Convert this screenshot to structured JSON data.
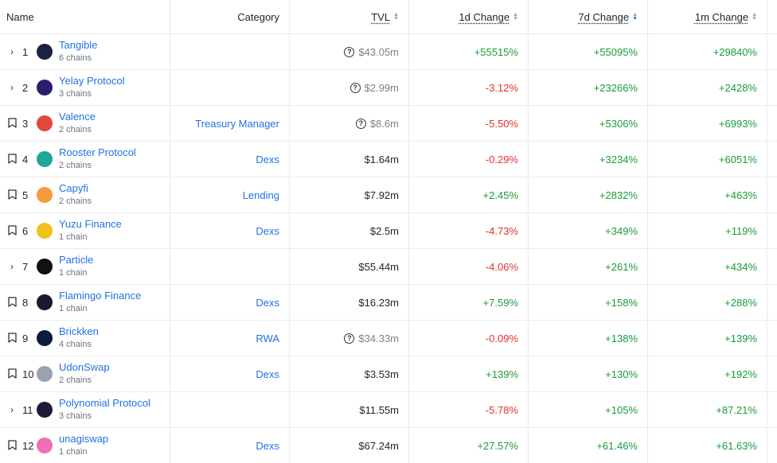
{
  "header": {
    "name": "Name",
    "category": "Category",
    "tvl": "TVL",
    "d1": "1d Change",
    "d7": "7d Change",
    "m1": "1m Change"
  },
  "rows": [
    {
      "control": "chevron",
      "rank": "1",
      "name": "Tangible",
      "chains": "6 chains",
      "category": "",
      "tvl": "$43.05m",
      "tvl_uncertain": true,
      "d1": "+55515%",
      "d7": "+55095%",
      "m1": "+29840%",
      "logo_color": "#1b2240"
    },
    {
      "control": "chevron",
      "rank": "2",
      "name": "Yelay Protocol",
      "chains": "3 chains",
      "category": "",
      "tvl": "$2.99m",
      "tvl_uncertain": true,
      "d1": "-3.12%",
      "d7": "+23266%",
      "m1": "+2428%",
      "logo_color": "#2a1f6e"
    },
    {
      "control": "bookmark",
      "rank": "3",
      "name": "Valence",
      "chains": "2 chains",
      "category": "Treasury Manager",
      "tvl": "$8.6m",
      "tvl_uncertain": true,
      "d1": "-5.50%",
      "d7": "+5306%",
      "m1": "+6993%",
      "logo_color": "#e2483d"
    },
    {
      "control": "bookmark",
      "rank": "4",
      "name": "Rooster Protocol",
      "chains": "2 chains",
      "category": "Dexs",
      "tvl": "$1.64m",
      "tvl_uncertain": false,
      "d1": "-0.29%",
      "d7": "+3234%",
      "m1": "+6051%",
      "logo_color": "#1fa79a"
    },
    {
      "control": "bookmark",
      "rank": "5",
      "name": "Capyfi",
      "chains": "2 chains",
      "category": "Lending",
      "tvl": "$7.92m",
      "tvl_uncertain": false,
      "d1": "+2.45%",
      "d7": "+2832%",
      "m1": "+463%",
      "logo_color": "#f59b3b"
    },
    {
      "control": "bookmark",
      "rank": "6",
      "name": "Yuzu Finance",
      "chains": "1 chain",
      "category": "Dexs",
      "tvl": "$2.5m",
      "tvl_uncertain": false,
      "d1": "-4.73%",
      "d7": "+349%",
      "m1": "+119%",
      "logo_color": "#f2c21a"
    },
    {
      "control": "chevron",
      "rank": "7",
      "name": "Particle",
      "chains": "1 chain",
      "category": "",
      "tvl": "$55.44m",
      "tvl_uncertain": false,
      "d1": "-4.06%",
      "d7": "+261%",
      "m1": "+434%",
      "logo_color": "#111111"
    },
    {
      "control": "bookmark",
      "rank": "8",
      "name": "Flamingo Finance",
      "chains": "1 chain",
      "category": "Dexs",
      "tvl": "$16.23m",
      "tvl_uncertain": false,
      "d1": "+7.59%",
      "d7": "+158%",
      "m1": "+288%",
      "logo_color": "#1a1a2e"
    },
    {
      "control": "bookmark",
      "rank": "9",
      "name": "Brickken",
      "chains": "4 chains",
      "category": "RWA",
      "tvl": "$34.33m",
      "tvl_uncertain": true,
      "d1": "-0.09%",
      "d7": "+138%",
      "m1": "+139%",
      "logo_color": "#0d1b3d"
    },
    {
      "control": "bookmark",
      "rank": "10",
      "name": "UdonSwap",
      "chains": "2 chains",
      "category": "Dexs",
      "tvl": "$3.53m",
      "tvl_uncertain": false,
      "d1": "+139%",
      "d7": "+130%",
      "m1": "+192%",
      "logo_color": "#9aa3ad"
    },
    {
      "control": "chevron",
      "rank": "11",
      "name": "Polynomial Protocol",
      "chains": "3 chains",
      "category": "",
      "tvl": "$11.55m",
      "tvl_uncertain": false,
      "d1": "-5.78%",
      "d7": "+105%",
      "m1": "+87.21%",
      "logo_color": "#1c1c3a"
    },
    {
      "control": "bookmark",
      "rank": "12",
      "name": "unagiswap",
      "chains": "1 chain",
      "category": "Dexs",
      "tvl": "$67.24m",
      "tvl_uncertain": false,
      "d1": "+27.57%",
      "d7": "+61.46%",
      "m1": "+61.63%",
      "logo_color": "#f06eb6"
    }
  ],
  "colors": {
    "link": "#2172e5",
    "positive": "#1a9b3a",
    "negative": "#e03131",
    "muted": "#7a7f87"
  },
  "icons": {
    "expand": "chevron-right-icon",
    "bookmark": "bookmark-icon",
    "uncertain_tvl": "question-circle-icon",
    "sort": "sort-arrows-icon"
  }
}
